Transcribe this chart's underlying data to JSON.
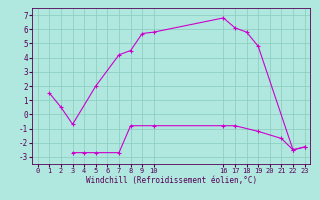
{
  "line1_x": [
    1,
    2,
    3,
    5,
    7,
    8,
    9,
    10,
    16,
    17,
    18,
    19,
    22,
    23
  ],
  "line1_y": [
    1.5,
    0.5,
    -0.7,
    2.0,
    4.2,
    4.5,
    5.7,
    5.8,
    6.8,
    6.1,
    5.8,
    4.8,
    -2.5,
    -2.3
  ],
  "line2_x": [
    3,
    4,
    5,
    7,
    8,
    10,
    16,
    17,
    19,
    21,
    22,
    23
  ],
  "line2_y": [
    -2.7,
    -2.7,
    -2.7,
    -2.7,
    -0.8,
    -0.8,
    -0.8,
    -0.8,
    -1.2,
    -1.7,
    -2.5,
    -2.3
  ],
  "line_color": "#cc00cc",
  "bg_color": "#b0e8e0",
  "grid_color": "#88ccbb",
  "xlabel": "Windchill (Refroidissement éolien,°C)",
  "xlim": [
    -0.5,
    23.5
  ],
  "ylim": [
    -3.5,
    7.5
  ],
  "xticks_left": [
    0,
    1,
    2,
    3,
    4,
    5,
    6,
    7,
    8,
    9,
    10
  ],
  "xticks_right": [
    16,
    17,
    18,
    19,
    20,
    21,
    22,
    23
  ],
  "yticks": [
    -3,
    -2,
    -1,
    0,
    1,
    2,
    3,
    4,
    5,
    6,
    7
  ]
}
